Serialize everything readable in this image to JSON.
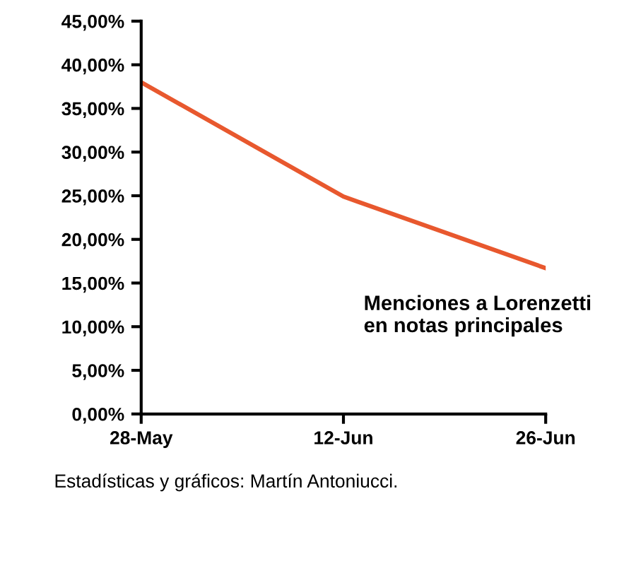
{
  "chart_data": {
    "type": "line",
    "categories": [
      "28-May",
      "12-Jun",
      "26-Jun"
    ],
    "series": [
      {
        "color": "#e8582e",
        "values": [
          38.0,
          24.9,
          16.7
        ]
      }
    ],
    "ylim": [
      0,
      45
    ],
    "yticks": [
      {
        "value": 0,
        "label": "0,00%"
      },
      {
        "value": 5,
        "label": "5,00%"
      },
      {
        "value": 10,
        "label": "10,00%"
      },
      {
        "value": 15,
        "label": "15,00%"
      },
      {
        "value": 20,
        "label": "20,00%"
      },
      {
        "value": 25,
        "label": "25,00%"
      },
      {
        "value": 30,
        "label": "30,00%"
      },
      {
        "value": 35,
        "label": "35,00%"
      },
      {
        "value": 40,
        "label": "40,00%"
      },
      {
        "value": 45,
        "label": "45,00%"
      }
    ],
    "annotations": [
      "Menciones a Lorenzetti\nen notas principales",
      "Estadísticas y gráficos: Martín Antoniucci."
    ],
    "grid": false,
    "legend": false,
    "marker": "none",
    "line_style": "solid"
  }
}
